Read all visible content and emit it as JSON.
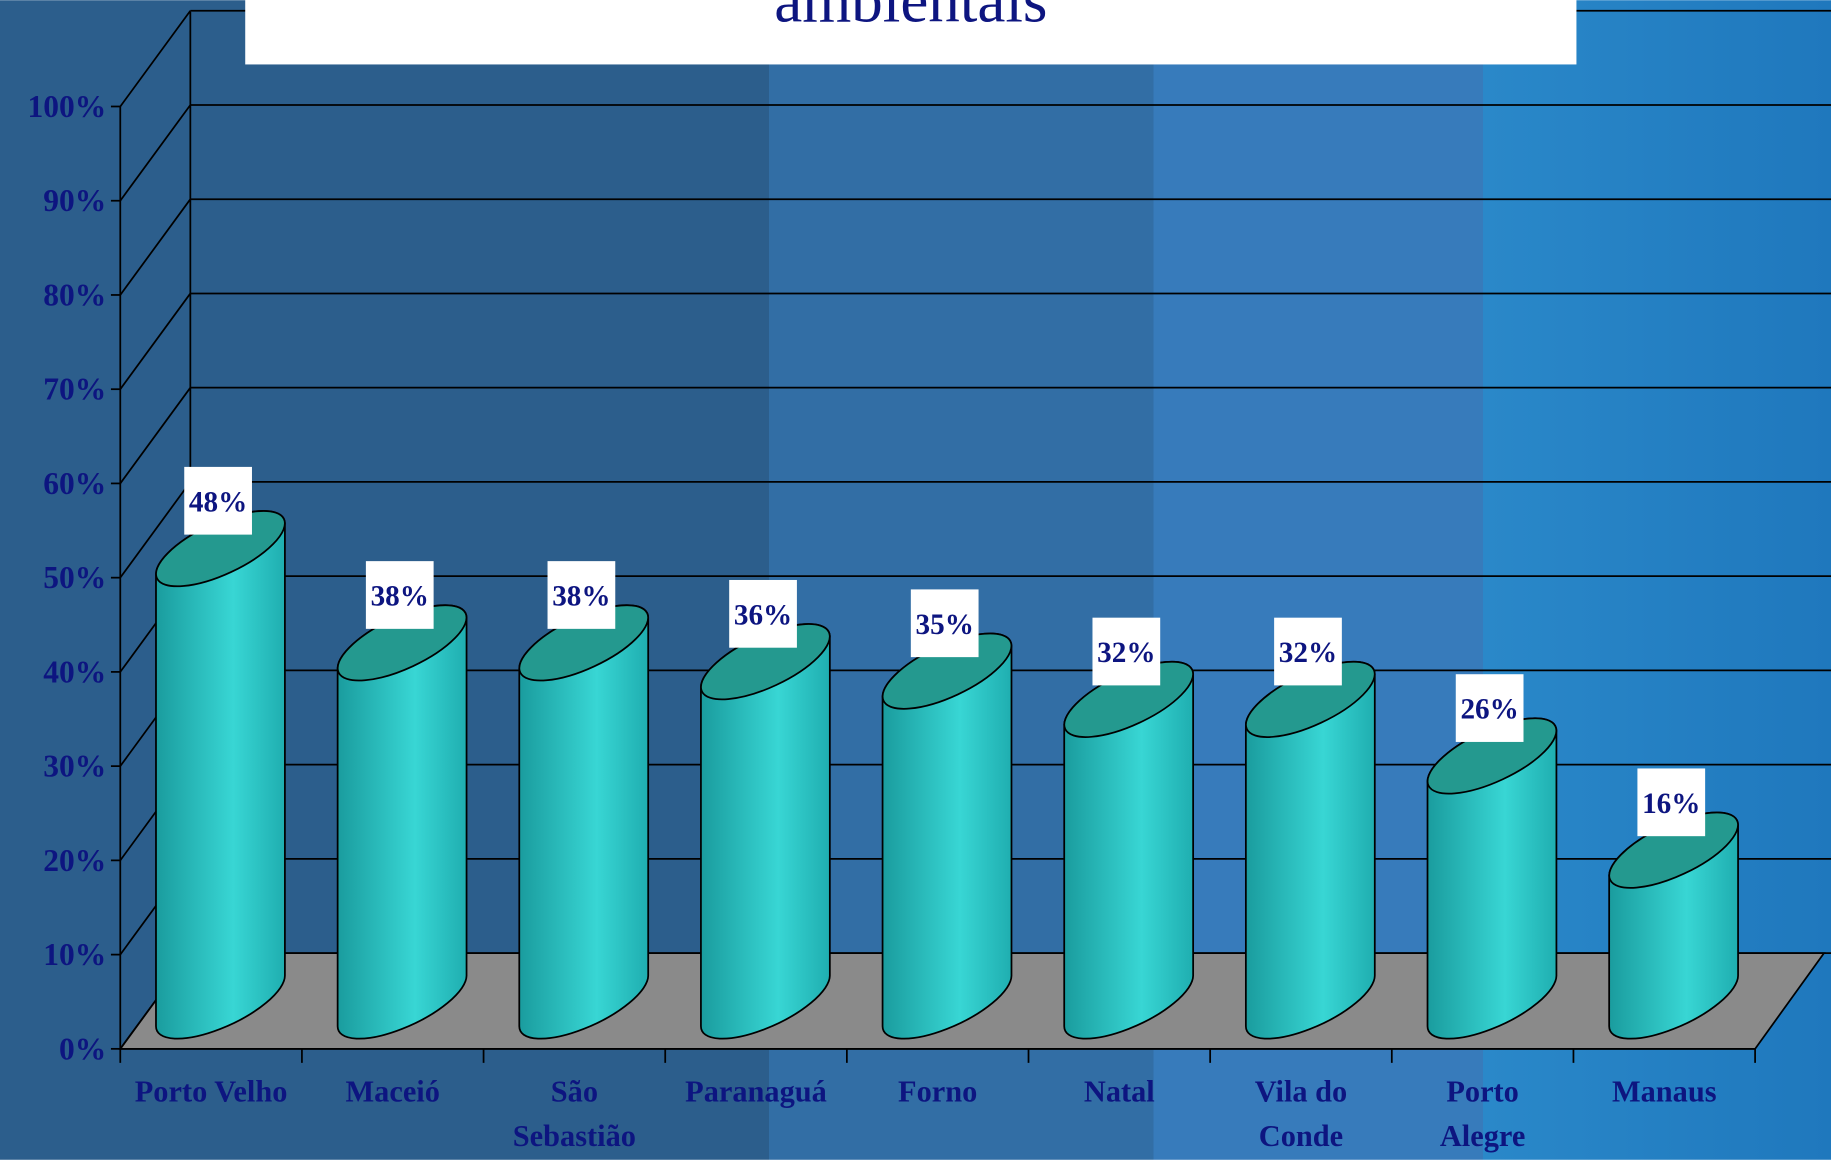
{
  "chart_data": {
    "type": "bar3d",
    "title": "ambientais",
    "categories": [
      "Porto Velho",
      "Maceió",
      "São\nSebastião",
      "Paranaguá",
      "Forno",
      "Natal",
      "Vila do\nConde",
      "Porto\nAlegre",
      "Manaus"
    ],
    "values": [
      48,
      38,
      38,
      36,
      35,
      32,
      32,
      26,
      16
    ],
    "value_labels": [
      "48%",
      "38%",
      "38%",
      "36%",
      "35%",
      "32%",
      "32%",
      "26%",
      "16%"
    ],
    "color": "#2cc4c4",
    "ylim": [
      0,
      100
    ],
    "yticks": [
      {
        "value": 0,
        "label": "0%"
      },
      {
        "value": 10,
        "label": "10%"
      },
      {
        "value": 20,
        "label": "20%"
      },
      {
        "value": 30,
        "label": "30%"
      },
      {
        "value": 40,
        "label": "40%"
      },
      {
        "value": 50,
        "label": "50%"
      },
      {
        "value": 60,
        "label": "60%"
      },
      {
        "value": 70,
        "label": "70%"
      },
      {
        "value": 80,
        "label": "80%"
      },
      {
        "value": 90,
        "label": "90%"
      },
      {
        "value": 100,
        "label": "100%"
      }
    ],
    "grid": true
  }
}
